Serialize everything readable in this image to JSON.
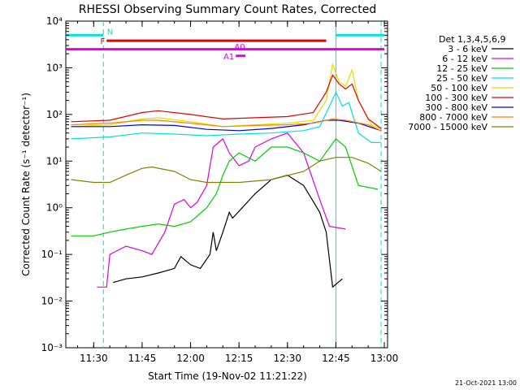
{
  "chart_data": {
    "type": "line",
    "title": "RHESSI Observing Summary Count Rates, Corrected",
    "xlabel": "Start Time (19-Nov-02 11:21:22)",
    "ylabel": "Corrected Count Rate (s⁻¹ detector⁻¹)",
    "yscale": "log",
    "ylim": [
      0.001,
      10000
    ],
    "xlim": [
      "11:21:22",
      "13:01:00"
    ],
    "x_ticks": [
      "11:30",
      "11:45",
      "12:00",
      "12:15",
      "12:30",
      "12:45",
      "13:00"
    ],
    "y_ticks": [
      "10⁻³",
      "10⁻²",
      "10⁻¹",
      "10⁰",
      "10¹",
      "10²",
      "10³",
      "10⁴"
    ],
    "legend_title": "Det 1,3,4,5,6,9",
    "legend_position": "right",
    "grid": false,
    "series": [
      {
        "name": "3 - 6 keV",
        "color": "#000000",
        "points": [
          [
            "11:36",
            0.025
          ],
          [
            "11:40",
            0.03
          ],
          [
            "11:45",
            0.033
          ],
          [
            "11:50",
            0.04
          ],
          [
            "11:55",
            0.05
          ],
          [
            "11:57",
            0.09
          ],
          [
            "12:00",
            0.06
          ],
          [
            "12:03",
            0.05
          ],
          [
            "12:06",
            0.1
          ],
          [
            "12:07",
            0.3
          ],
          [
            "12:08",
            0.12
          ],
          [
            "12:10",
            0.3
          ],
          [
            "12:12",
            0.8
          ],
          [
            "12:13",
            0.6
          ],
          [
            "12:16",
            1.0
          ],
          [
            "12:20",
            2.0
          ],
          [
            "12:25",
            4.0
          ],
          [
            "12:30",
            5.0
          ],
          [
            "12:35",
            3.0
          ],
          [
            "12:40",
            0.8
          ],
          [
            "12:42",
            0.3
          ],
          [
            "12:44",
            0.02
          ],
          [
            "12:47",
            0.03
          ]
        ]
      },
      {
        "name": "6 - 12 keV",
        "color": "#e000e0",
        "points": [
          [
            "11:31",
            0.02
          ],
          [
            "11:34",
            0.02
          ],
          [
            "11:35",
            0.1
          ],
          [
            "11:40",
            0.15
          ],
          [
            "11:45",
            0.12
          ],
          [
            "11:48",
            0.1
          ],
          [
            "11:52",
            0.3
          ],
          [
            "11:55",
            1.2
          ],
          [
            "11:58",
            1.5
          ],
          [
            "12:00",
            1.0
          ],
          [
            "12:02",
            1.3
          ],
          [
            "12:05",
            3.0
          ],
          [
            "12:07",
            20
          ],
          [
            "12:10",
            30
          ],
          [
            "12:12",
            15
          ],
          [
            "12:15",
            8
          ],
          [
            "12:18",
            10
          ],
          [
            "12:20",
            20
          ],
          [
            "12:25",
            30
          ],
          [
            "12:30",
            40
          ],
          [
            "12:35",
            15
          ],
          [
            "12:40",
            1.5
          ],
          [
            "12:43",
            0.4
          ],
          [
            "12:48",
            0.35
          ]
        ]
      },
      {
        "name": "12 - 25 keV",
        "color": "#00d000",
        "points": [
          [
            "11:23",
            0.25
          ],
          [
            "11:30",
            0.25
          ],
          [
            "11:35",
            0.3
          ],
          [
            "11:40",
            0.35
          ],
          [
            "11:45",
            0.4
          ],
          [
            "11:50",
            0.45
          ],
          [
            "11:55",
            0.4
          ],
          [
            "12:00",
            0.5
          ],
          [
            "12:05",
            1.0
          ],
          [
            "12:08",
            2.0
          ],
          [
            "12:10",
            5.0
          ],
          [
            "12:12",
            10
          ],
          [
            "12:15",
            15
          ],
          [
            "12:20",
            10
          ],
          [
            "12:25",
            20
          ],
          [
            "12:30",
            20
          ],
          [
            "12:35",
            15
          ],
          [
            "12:40",
            10
          ],
          [
            "12:45",
            30
          ],
          [
            "12:48",
            20
          ],
          [
            "12:52",
            3
          ],
          [
            "12:58",
            2.5
          ]
        ]
      },
      {
        "name": "25 - 50 keV",
        "color": "#00e0e0",
        "points": [
          [
            "11:23",
            30
          ],
          [
            "11:35",
            33
          ],
          [
            "11:45",
            40
          ],
          [
            "11:55",
            38
          ],
          [
            "12:05",
            35
          ],
          [
            "12:15",
            38
          ],
          [
            "12:25",
            40
          ],
          [
            "12:35",
            45
          ],
          [
            "12:40",
            55
          ],
          [
            "12:43",
            150
          ],
          [
            "12:45",
            300
          ],
          [
            "12:47",
            150
          ],
          [
            "12:49",
            180
          ],
          [
            "12:52",
            40
          ],
          [
            "12:56",
            25
          ],
          [
            "12:59",
            25
          ]
        ]
      },
      {
        "name": "50 - 100 keV",
        "color": "#e0e000",
        "points": [
          [
            "11:23",
            55
          ],
          [
            "11:35",
            60
          ],
          [
            "11:45",
            80
          ],
          [
            "11:50",
            85
          ],
          [
            "12:00",
            70
          ],
          [
            "12:10",
            55
          ],
          [
            "12:20",
            60
          ],
          [
            "12:30",
            65
          ],
          [
            "12:38",
            75
          ],
          [
            "12:42",
            200
          ],
          [
            "12:44",
            1200
          ],
          [
            "12:46",
            500
          ],
          [
            "12:48",
            400
          ],
          [
            "12:50",
            900
          ],
          [
            "12:52",
            200
          ],
          [
            "12:56",
            60
          ],
          [
            "12:59",
            50
          ]
        ]
      },
      {
        "name": "100 - 300 keV",
        "color": "#e00000",
        "points": [
          [
            "11:23",
            70
          ],
          [
            "11:35",
            75
          ],
          [
            "11:45",
            110
          ],
          [
            "11:50",
            120
          ],
          [
            "12:00",
            100
          ],
          [
            "12:10",
            80
          ],
          [
            "12:20",
            85
          ],
          [
            "12:30",
            90
          ],
          [
            "12:38",
            110
          ],
          [
            "12:42",
            300
          ],
          [
            "12:44",
            700
          ],
          [
            "12:46",
            450
          ],
          [
            "12:48",
            350
          ],
          [
            "12:50",
            450
          ],
          [
            "12:52",
            200
          ],
          [
            "12:55",
            80
          ],
          [
            "12:59",
            50
          ]
        ]
      },
      {
        "name": "300 - 800 keV",
        "color": "#0000e0",
        "points": [
          [
            "11:23",
            55
          ],
          [
            "11:35",
            55
          ],
          [
            "11:45",
            60
          ],
          [
            "11:55",
            58
          ],
          [
            "12:05",
            48
          ],
          [
            "12:15",
            45
          ],
          [
            "12:25",
            50
          ],
          [
            "12:35",
            60
          ],
          [
            "12:42",
            75
          ],
          [
            "12:46",
            75
          ],
          [
            "12:52",
            65
          ],
          [
            "12:59",
            45
          ]
        ]
      },
      {
        "name": "800 - 7000 keV",
        "color": "#ff8000",
        "points": [
          [
            "11:23",
            60
          ],
          [
            "11:35",
            65
          ],
          [
            "11:45",
            75
          ],
          [
            "11:50",
            75
          ],
          [
            "12:00",
            65
          ],
          [
            "12:10",
            55
          ],
          [
            "12:20",
            58
          ],
          [
            "12:30",
            60
          ],
          [
            "12:38",
            65
          ],
          [
            "12:44",
            80
          ],
          [
            "12:48",
            75
          ],
          [
            "12:55",
            60
          ],
          [
            "12:59",
            45
          ]
        ]
      },
      {
        "name": "7000 - 15000 keV",
        "color": "#808000",
        "points": [
          [
            "11:23",
            4
          ],
          [
            "11:30",
            3.5
          ],
          [
            "11:35",
            3.5
          ],
          [
            "11:40",
            5
          ],
          [
            "11:45",
            7
          ],
          [
            "11:48",
            7.5
          ],
          [
            "11:55",
            6
          ],
          [
            "12:00",
            4
          ],
          [
            "12:05",
            3.5
          ],
          [
            "12:15",
            3.5
          ],
          [
            "12:25",
            4
          ],
          [
            "12:35",
            6
          ],
          [
            "12:40",
            10
          ],
          [
            "12:45",
            12
          ],
          [
            "12:50",
            12
          ],
          [
            "12:55",
            9
          ],
          [
            "12:59",
            6
          ]
        ]
      }
    ],
    "markers": [
      {
        "label": "N",
        "color": "#00e0e0",
        "start": "11:21",
        "end": "11:33",
        "level": 5000
      },
      {
        "label": "",
        "color": "#00e0e0",
        "start": "12:45",
        "end": "13:00",
        "level": 5000
      },
      {
        "label": "F",
        "color": "#e00000",
        "start": "11:34",
        "end": "12:42",
        "level": 3800
      },
      {
        "label": "",
        "color": "#e000e0",
        "start": "11:21",
        "end": "13:00",
        "level": 2500
      },
      {
        "label": "A0",
        "color": "#e000e0",
        "start": "",
        "end": "",
        "level": 0
      },
      {
        "label": "A1",
        "color": "#e000e0",
        "start": "12:14",
        "end": "12:17",
        "level": 1800
      }
    ],
    "vlines": [
      {
        "time": "11:33",
        "color": "#00e0e0",
        "style": "dashed"
      },
      {
        "time": "12:45",
        "color": "#00e0e0",
        "style": "solid"
      },
      {
        "time": "12:59",
        "color": "#00e0e0",
        "style": "dashed"
      }
    ],
    "timestamp": "21-Oct-2021 13:00"
  }
}
